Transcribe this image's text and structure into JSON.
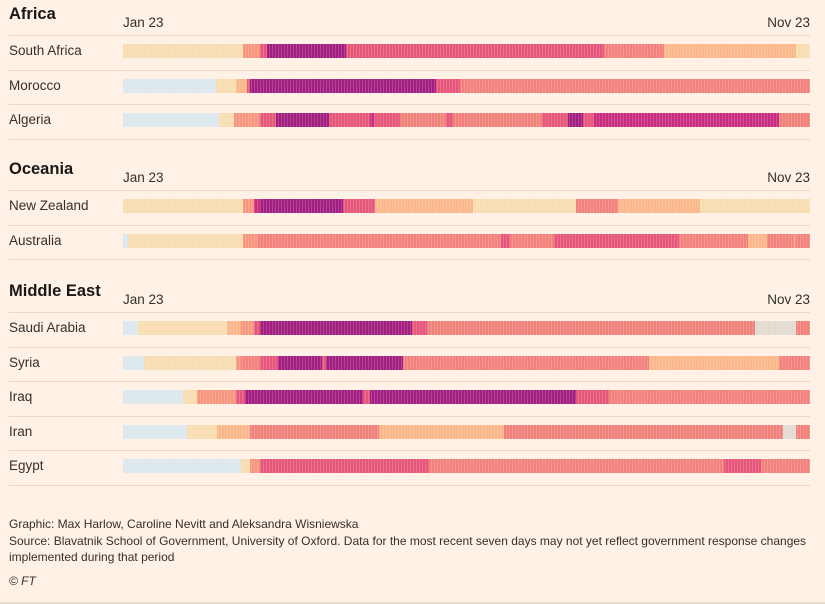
{
  "chart_data": {
    "type": "heatmap",
    "axis": {
      "start_label": "Jan 23",
      "end_label": "Nov 23"
    },
    "stringency_color_scale": [
      {
        "level": 0,
        "color": "#DCE8EE"
      },
      {
        "level": 1,
        "color": "#E3DAD2"
      },
      {
        "level": 2,
        "color": "#F8DDB0"
      },
      {
        "level": 3,
        "color": "#FAB789"
      },
      {
        "level": 4,
        "color": "#F6967F"
      },
      {
        "level": 5,
        "color": "#F2807B"
      },
      {
        "level": 6,
        "color": "#E6567A"
      },
      {
        "level": 7,
        "color": "#C92E7E"
      },
      {
        "level": 8,
        "color": "#A11E80"
      },
      {
        "level": 9,
        "color": "#7A1573"
      }
    ],
    "time_fraction_note": "segment boundaries given as fractions of the Jan 23 to Nov 23 timeline",
    "regions": [
      {
        "name": "Africa",
        "countries": [
          {
            "name": "South Africa",
            "segments": [
              [
                0,
                2
              ],
              [
                0.175,
                4
              ],
              [
                0.2,
                6
              ],
              [
                0.21,
                8
              ],
              [
                0.325,
                6
              ],
              [
                0.7,
                5
              ],
              [
                0.788,
                3
              ],
              [
                0.98,
                2
              ]
            ]
          },
          {
            "name": "Morocco",
            "segments": [
              [
                0,
                0
              ],
              [
                0.135,
                2
              ],
              [
                0.165,
                3
              ],
              [
                0.18,
                6
              ],
              [
                0.185,
                8
              ],
              [
                0.455,
                6
              ],
              [
                0.49,
                5
              ]
            ]
          },
          {
            "name": "Algeria",
            "segments": [
              [
                0,
                0
              ],
              [
                0.14,
                2
              ],
              [
                0.162,
                4
              ],
              [
                0.2,
                6
              ],
              [
                0.222,
                8
              ],
              [
                0.3,
                6
              ],
              [
                0.36,
                7
              ],
              [
                0.365,
                6
              ],
              [
                0.403,
                5
              ],
              [
                0.47,
                6
              ],
              [
                0.48,
                5
              ],
              [
                0.61,
                6
              ],
              [
                0.648,
                8
              ],
              [
                0.67,
                6
              ],
              [
                0.685,
                7
              ],
              [
                0.955,
                5
              ]
            ]
          }
        ]
      },
      {
        "name": "Oceania",
        "countries": [
          {
            "name": "New Zealand",
            "segments": [
              [
                0,
                2
              ],
              [
                0.175,
                4
              ],
              [
                0.19,
                7
              ],
              [
                0.2,
                8
              ],
              [
                0.32,
                6
              ],
              [
                0.367,
                3
              ],
              [
                0.51,
                2
              ],
              [
                0.66,
                5
              ],
              [
                0.72,
                3
              ],
              [
                0.84,
                2
              ]
            ]
          },
          {
            "name": "Australia",
            "segments": [
              [
                0,
                0
              ],
              [
                0.008,
                2
              ],
              [
                0.175,
                4
              ],
              [
                0.197,
                5
              ],
              [
                0.55,
                6
              ],
              [
                0.563,
                5
              ],
              [
                0.627,
                6
              ],
              [
                0.81,
                5
              ],
              [
                0.91,
                3
              ],
              [
                0.937,
                5
              ],
              [
                0.975,
                4
              ],
              [
                0.98,
                5
              ]
            ]
          }
        ]
      },
      {
        "name": "Middle East",
        "countries": [
          {
            "name": "Saudi Arabia",
            "segments": [
              [
                0,
                0
              ],
              [
                0.022,
                2
              ],
              [
                0.152,
                3
              ],
              [
                0.172,
                4
              ],
              [
                0.19,
                6
              ],
              [
                0.2,
                8
              ],
              [
                0.42,
                6
              ],
              [
                0.443,
                5
              ],
              [
                0.92,
                1
              ],
              [
                0.98,
                5
              ]
            ]
          },
          {
            "name": "Syria",
            "segments": [
              [
                0,
                0
              ],
              [
                0.03,
                2
              ],
              [
                0.165,
                4
              ],
              [
                0.172,
                5
              ],
              [
                0.2,
                6
              ],
              [
                0.225,
                8
              ],
              [
                0.29,
                6
              ],
              [
                0.295,
                8
              ],
              [
                0.408,
                5
              ],
              [
                0.765,
                3
              ],
              [
                0.955,
                5
              ]
            ]
          },
          {
            "name": "Iraq",
            "segments": [
              [
                0,
                0
              ],
              [
                0.088,
                2
              ],
              [
                0.108,
                4
              ],
              [
                0.165,
                6
              ],
              [
                0.178,
                8
              ],
              [
                0.35,
                6
              ],
              [
                0.36,
                8
              ],
              [
                0.66,
                6
              ],
              [
                0.708,
                5
              ]
            ]
          },
          {
            "name": "Iran",
            "segments": [
              [
                0,
                0
              ],
              [
                0.093,
                2
              ],
              [
                0.137,
                3
              ],
              [
                0.185,
                5
              ],
              [
                0.373,
                3
              ],
              [
                0.555,
                5
              ],
              [
                0.96,
                1
              ],
              [
                0.98,
                5
              ]
            ]
          },
          {
            "name": "Egypt",
            "segments": [
              [
                0,
                0
              ],
              [
                0.172,
                2
              ],
              [
                0.185,
                4
              ],
              [
                0.2,
                6
              ],
              [
                0.445,
                5
              ],
              [
                0.875,
                6
              ],
              [
                0.928,
                5
              ]
            ]
          }
        ]
      }
    ]
  },
  "footer": {
    "credit": "Graphic: Max Harlow, Caroline Nevitt and Aleksandra Wisniewska",
    "source": "Source: Blavatnik School of Government, University of Oxford. Data for the most recent seven days may not yet reflect government response changes implemented during that period",
    "copyright": "© FT"
  }
}
